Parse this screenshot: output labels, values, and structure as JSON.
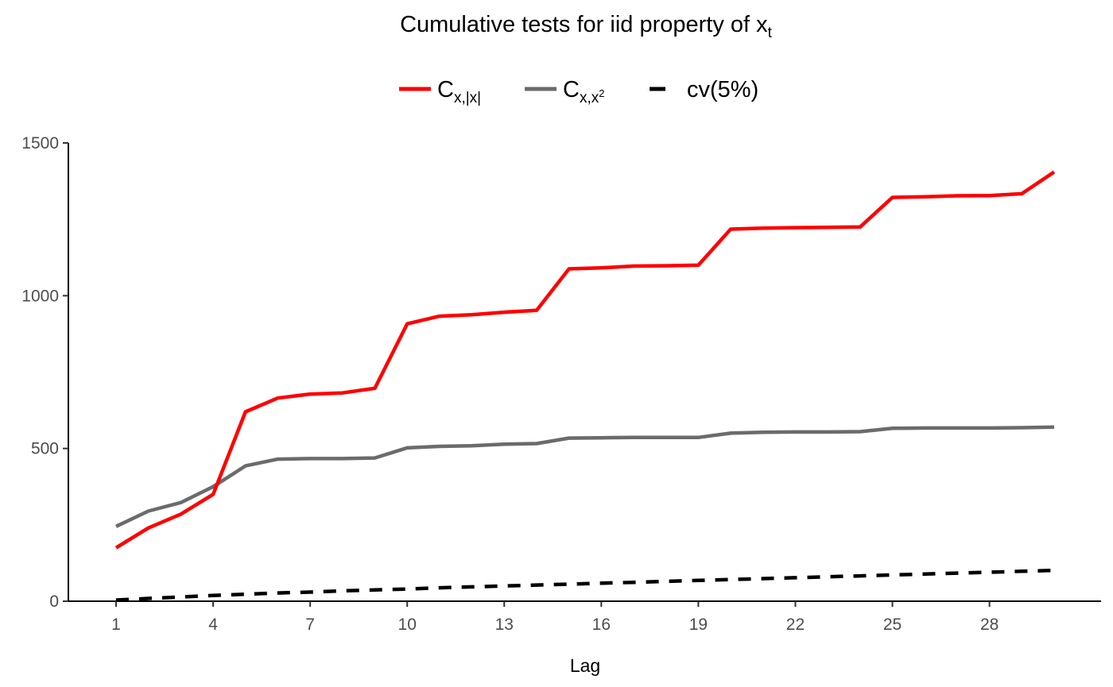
{
  "chart_data": {
    "type": "line",
    "title": {
      "main": "Cumulative tests for iid property of x",
      "sub": "t"
    },
    "xlabel": "Lag",
    "ylabel": "",
    "xlim": [
      1,
      30
    ],
    "ylim": [
      0,
      1500
    ],
    "x_ticks": [
      1,
      4,
      7,
      10,
      13,
      16,
      19,
      22,
      25,
      28
    ],
    "y_ticks": [
      0,
      500,
      1000,
      1500
    ],
    "grid": false,
    "legend_position": "top",
    "x": [
      1,
      2,
      3,
      4,
      5,
      6,
      7,
      8,
      9,
      10,
      11,
      12,
      13,
      14,
      15,
      16,
      17,
      18,
      19,
      20,
      21,
      22,
      23,
      24,
      25,
      26,
      27,
      28,
      29,
      30
    ],
    "series": [
      {
        "name": "C_{x,|x|}",
        "legend": {
          "main": "C",
          "sub": "x,|x|",
          "sup": ""
        },
        "color": "#ff0000",
        "dash": "solid",
        "values": [
          175,
          240,
          285,
          350,
          620,
          665,
          678,
          682,
          697,
          908,
          933,
          938,
          946,
          952,
          1088,
          1091,
          1097,
          1098,
          1100,
          1218,
          1221,
          1223,
          1224,
          1225,
          1322,
          1324,
          1327,
          1328,
          1334,
          1405
        ]
      },
      {
        "name": "C_{x,x^2}",
        "legend": {
          "main": "C",
          "sub": "x,x",
          "sup": "2"
        },
        "color": "#6b6b6b",
        "dash": "solid",
        "values": [
          245,
          295,
          323,
          375,
          443,
          465,
          467,
          467,
          469,
          502,
          507,
          509,
          514,
          516,
          534,
          535,
          536,
          536,
          536,
          550,
          553,
          554,
          554,
          555,
          566,
          567,
          567,
          567,
          568,
          570
        ]
      },
      {
        "name": "cv(5%)",
        "legend": {
          "main": "cv(5%)",
          "sub": "",
          "sup": ""
        },
        "color": "#000000",
        "dash": "dashed",
        "values": [
          4,
          9,
          14,
          19,
          23,
          27,
          30,
          34,
          37,
          40,
          44,
          47,
          50,
          53,
          56,
          59,
          62,
          65,
          68,
          71,
          74,
          77,
          80,
          83,
          86,
          89,
          92,
          95,
          98,
          101
        ]
      }
    ]
  }
}
